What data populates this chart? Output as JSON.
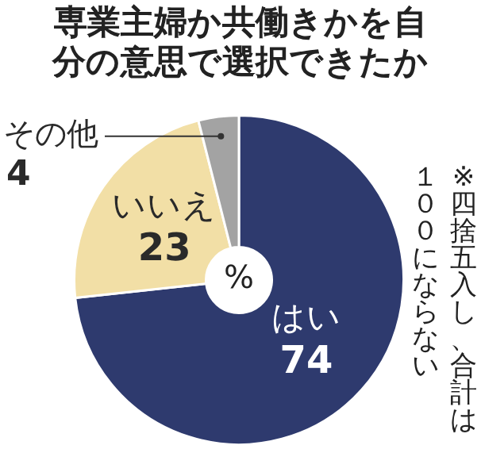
{
  "chart_data": {
    "type": "donut",
    "title": "専業主婦か共働きかを自分の意思で選択できたか",
    "categories": [
      "はい",
      "いいえ",
      "その他"
    ],
    "values": [
      74,
      23,
      4
    ],
    "colors": [
      "#2e3a6e",
      "#f2dfa6",
      "#a3a3a3"
    ],
    "data_labels": true,
    "legend": false,
    "annotations": [
      "%",
      "※四捨五入し、合計は１００にならない"
    ]
  }
}
